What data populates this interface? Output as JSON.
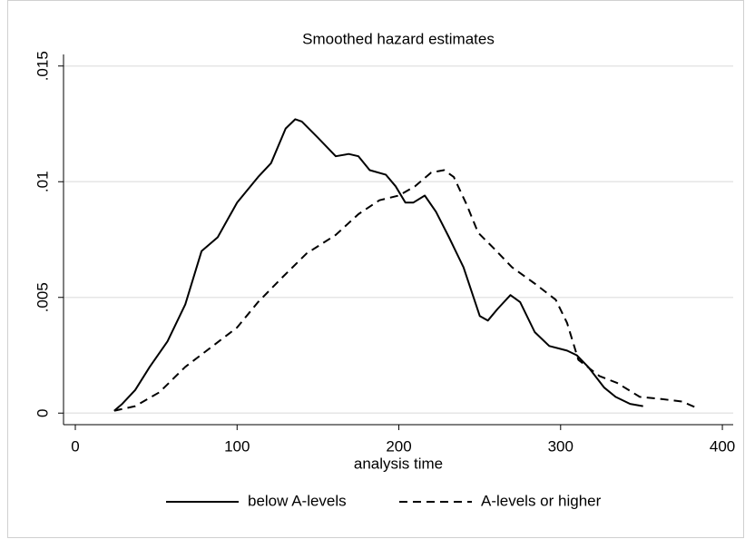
{
  "chart_data": {
    "type": "line",
    "title": "Smoothed hazard estimates",
    "x_label": "analysis time",
    "xlim": [
      -7.3,
      406.7
    ],
    "ylim": [
      -0.0005,
      0.0155
    ],
    "xticks": [
      0,
      100,
      200,
      300,
      400
    ],
    "yticks": [
      {
        "value": 0,
        "label": "0"
      },
      {
        "value": 0.005,
        "label": ".005"
      },
      {
        "value": 0.01,
        "label": ".01"
      },
      {
        "value": 0.015,
        "label": ".015"
      }
    ],
    "grid": true,
    "legend": "bottom",
    "series": [
      {
        "name": "below A-levels",
        "color": "#000000",
        "style": "solid",
        "x": [
          24,
          29,
          37,
          46,
          57,
          68,
          78,
          88,
          100,
          113,
          121,
          130,
          136,
          140,
          150,
          161,
          169,
          175,
          182,
          192,
          198,
          204,
          209,
          216,
          223,
          231,
          240,
          250,
          255,
          261,
          269,
          275,
          284,
          293,
          304,
          310,
          317,
          327,
          334,
          343,
          351
        ],
        "values": [
          0.0001,
          0.0004,
          0.001,
          0.002,
          0.0031,
          0.0047,
          0.007,
          0.0076,
          0.0091,
          0.0102,
          0.0108,
          0.0123,
          0.0127,
          0.0126,
          0.0119,
          0.0111,
          0.0112,
          0.0111,
          0.0105,
          0.0103,
          0.0098,
          0.0091,
          0.0091,
          0.0094,
          0.0087,
          0.0076,
          0.0063,
          0.0042,
          0.004,
          0.0045,
          0.0051,
          0.0048,
          0.0035,
          0.0029,
          0.0027,
          0.0025,
          0.002,
          0.0011,
          0.0007,
          0.0004,
          0.0003
        ]
      },
      {
        "name": "A-levels or higher",
        "color": "#000000",
        "style": "dashed",
        "x": [
          24,
          37,
          52,
          68,
          85,
          100,
          113,
          127,
          143,
          161,
          175,
          188,
          200,
          210,
          220,
          228,
          234,
          242,
          249,
          259,
          270,
          284,
          297,
          304,
          311,
          324,
          335,
          349,
          363,
          375,
          385
        ],
        "values": [
          0.0001,
          0.0003,
          0.0009,
          0.002,
          0.0029,
          0.0037,
          0.0048,
          0.0058,
          0.0069,
          0.0077,
          0.0086,
          0.0092,
          0.0094,
          0.0098,
          0.0104,
          0.0105,
          0.0102,
          0.009,
          0.0078,
          0.0071,
          0.0063,
          0.0056,
          0.0049,
          0.0039,
          0.0023,
          0.0016,
          0.0013,
          0.0007,
          0.0006,
          0.0005,
          0.0002
        ]
      }
    ]
  }
}
